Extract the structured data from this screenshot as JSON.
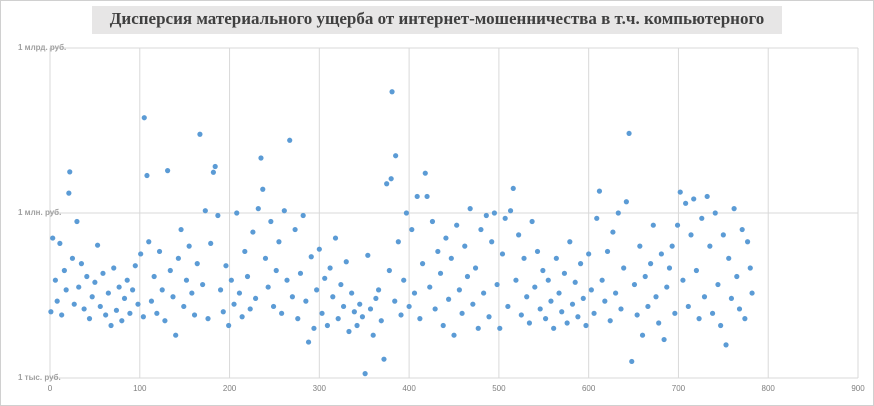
{
  "chart_data": {
    "type": "scatter",
    "title": "Дисперсия материального ущерба от интернет-мошенничества в т.ч. компьютерного",
    "color": "#5b9bd5",
    "log_y": true,
    "grid": true,
    "xlim": [
      0,
      900
    ],
    "xticks": [
      0,
      100,
      200,
      300,
      400,
      500,
      600,
      700,
      800,
      900
    ],
    "ylim": [
      1000,
      1000000000
    ],
    "yticks": [
      {
        "value": 1000,
        "label": "1 тыс. руб."
      },
      {
        "value": 1000000,
        "label": "1 млн. руб."
      },
      {
        "value": 1000000000,
        "label": "1 млрд. руб."
      }
    ],
    "x": [
      1,
      3,
      6,
      8,
      11,
      13,
      16,
      18,
      21,
      22,
      25,
      27,
      30,
      32,
      35,
      38,
      41,
      44,
      47,
      50,
      53,
      56,
      59,
      62,
      65,
      68,
      71,
      74,
      77,
      80,
      83,
      86,
      89,
      92,
      95,
      98,
      101,
      104,
      105,
      108,
      110,
      113,
      116,
      119,
      122,
      125,
      128,
      131,
      134,
      137,
      140,
      143,
      146,
      149,
      152,
      155,
      158,
      161,
      164,
      167,
      170,
      173,
      176,
      179,
      182,
      184,
      187,
      190,
      193,
      196,
      199,
      202,
      205,
      208,
      211,
      214,
      217,
      220,
      223,
      226,
      229,
      232,
      235,
      237,
      240,
      243,
      246,
      249,
      252,
      255,
      258,
      261,
      264,
      267,
      270,
      273,
      276,
      279,
      282,
      285,
      288,
      291,
      294,
      297,
      300,
      303,
      306,
      309,
      312,
      315,
      318,
      321,
      324,
      327,
      330,
      333,
      336,
      339,
      342,
      345,
      348,
      351,
      354,
      357,
      360,
      363,
      366,
      369,
      372,
      375,
      378,
      380,
      381,
      384,
      385,
      388,
      391,
      394,
      397,
      400,
      403,
      406,
      409,
      412,
      415,
      418,
      420,
      423,
      426,
      429,
      432,
      435,
      438,
      441,
      444,
      447,
      450,
      453,
      456,
      459,
      462,
      465,
      468,
      471,
      474,
      477,
      480,
      483,
      486,
      489,
      492,
      495,
      498,
      501,
      504,
      507,
      510,
      513,
      516,
      519,
      522,
      525,
      528,
      531,
      534,
      537,
      540,
      543,
      546,
      549,
      552,
      555,
      558,
      561,
      564,
      567,
      570,
      573,
      576,
      579,
      582,
      585,
      588,
      591,
      594,
      597,
      600,
      603,
      606,
      609,
      612,
      615,
      618,
      621,
      624,
      627,
      630,
      633,
      636,
      639,
      642,
      645,
      648,
      651,
      654,
      657,
      660,
      663,
      666,
      669,
      672,
      675,
      678,
      681,
      684,
      687,
      690,
      693,
      696,
      699,
      702,
      705,
      708,
      711,
      714,
      717,
      720,
      723,
      726,
      729,
      732,
      735,
      738,
      741,
      744,
      747,
      750,
      753,
      756,
      759,
      762,
      765,
      768,
      771,
      774,
      777,
      780,
      782
    ],
    "values": [
      16000,
      350000,
      60000,
      25000,
      280000,
      14000,
      90000,
      40000,
      2300000,
      5600000,
      150000,
      22000,
      700000,
      45000,
      120000,
      18000,
      70000,
      12000,
      30000,
      55000,
      260000,
      20000,
      80000,
      14000,
      35000,
      9000,
      100000,
      17000,
      45000,
      11000,
      28000,
      60000,
      15000,
      40000,
      110000,
      22000,
      180000,
      13000,
      54000000,
      4800000,
      300000,
      25000,
      70000,
      15000,
      200000,
      40000,
      11000,
      5900000,
      90000,
      30000,
      6000,
      150000,
      500000,
      20000,
      60000,
      250000,
      35000,
      14000,
      120000,
      27000000,
      50000,
      1100000,
      12000,
      280000,
      5500000,
      7000000,
      900000,
      40000,
      16000,
      110000,
      9000,
      60000,
      22000,
      1000000,
      35000,
      13000,
      200000,
      70000,
      18000,
      450000,
      28000,
      1200000,
      10000000,
      2700000,
      150000,
      45000,
      700000,
      20000,
      90000,
      300000,
      15000,
      1100000,
      60000,
      21000000,
      30000,
      500000,
      12000,
      80000,
      900000,
      25000,
      4500,
      160000,
      8000,
      40000,
      220000,
      15000,
      65000,
      9000,
      100000,
      30000,
      350000,
      12000,
      50000,
      20000,
      130000,
      7000,
      35000,
      16000,
      9000,
      22000,
      13000,
      1200,
      170000,
      18000,
      6000,
      28000,
      40000,
      11000,
      2200,
      3400000,
      90000,
      4200000,
      160000000,
      25000,
      11000000,
      300000,
      14000,
      60000,
      1000000,
      20000,
      500000,
      35000,
      2000000,
      12000,
      120000,
      5300000,
      2000000,
      45000,
      700000,
      18000,
      200000,
      80000,
      9000,
      350000,
      27000,
      150000,
      6000,
      600000,
      40000,
      15000,
      250000,
      70000,
      1200000,
      22000,
      100000,
      8000,
      500000,
      35000,
      900000,
      13000,
      300000,
      1000000,
      50000,
      8000,
      180000,
      800000,
      20000,
      1100000,
      2800000,
      60000,
      400000,
      14000,
      150000,
      30000,
      10000,
      700000,
      45000,
      200000,
      18000,
      90000,
      12000,
      60000,
      25000,
      8000,
      150000,
      35000,
      16000,
      80000,
      10000,
      300000,
      22000,
      55000,
      13000,
      120000,
      28000,
      9000,
      180000,
      40000,
      15000,
      800000,
      2500000,
      60000,
      25000,
      200000,
      11000,
      450000,
      35000,
      1000000,
      18000,
      100000,
      1600000,
      28000000,
      2000,
      50000,
      14000,
      250000,
      6000,
      70000,
      20000,
      120000,
      600000,
      30000,
      10000,
      180000,
      5000,
      45000,
      100000,
      250000,
      15000,
      600000,
      2400000,
      60000,
      1500000,
      20000,
      400000,
      1800000,
      90000,
      12000,
      800000,
      30000,
      2000000,
      250000,
      15000,
      1000000,
      50000,
      9000,
      400000,
      4000,
      150000,
      28000,
      1200000,
      70000,
      18000,
      500000,
      12000,
      300000,
      100000,
      35000
    ]
  }
}
